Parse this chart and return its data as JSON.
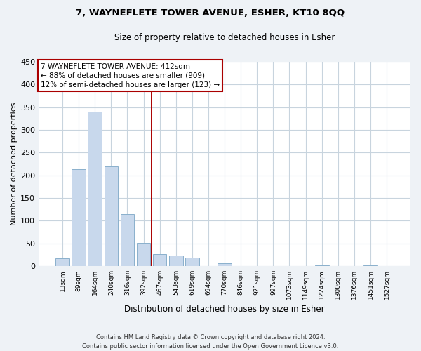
{
  "title": "7, WAYNEFLETE TOWER AVENUE, ESHER, KT10 8QQ",
  "subtitle": "Size of property relative to detached houses in Esher",
  "xlabel": "Distribution of detached houses by size in Esher",
  "ylabel": "Number of detached properties",
  "bar_color": "#c8d8ec",
  "bar_edge_color": "#8ab0cc",
  "categories": [
    "13sqm",
    "89sqm",
    "164sqm",
    "240sqm",
    "316sqm",
    "392sqm",
    "467sqm",
    "543sqm",
    "619sqm",
    "694sqm",
    "770sqm",
    "846sqm",
    "921sqm",
    "997sqm",
    "1073sqm",
    "1149sqm",
    "1224sqm",
    "1300sqm",
    "1376sqm",
    "1451sqm",
    "1527sqm"
  ],
  "values": [
    18,
    214,
    340,
    220,
    115,
    51,
    26,
    24,
    19,
    0,
    6,
    0,
    0,
    0,
    0,
    0,
    2,
    0,
    0,
    2,
    0
  ],
  "vline_x": 5.5,
  "vline_color": "#aa0000",
  "annotation_title": "7 WAYNEFLETE TOWER AVENUE: 412sqm",
  "annotation_line1": "← 88% of detached houses are smaller (909)",
  "annotation_line2": "12% of semi-detached houses are larger (123) →",
  "ylim": [
    0,
    450
  ],
  "yticks": [
    0,
    50,
    100,
    150,
    200,
    250,
    300,
    350,
    400,
    450
  ],
  "footer_line1": "Contains HM Land Registry data © Crown copyright and database right 2024.",
  "footer_line2": "Contains public sector information licensed under the Open Government Licence v3.0.",
  "background_color": "#eef2f6",
  "plot_background_color": "#ffffff",
  "grid_color": "#c8d4de"
}
